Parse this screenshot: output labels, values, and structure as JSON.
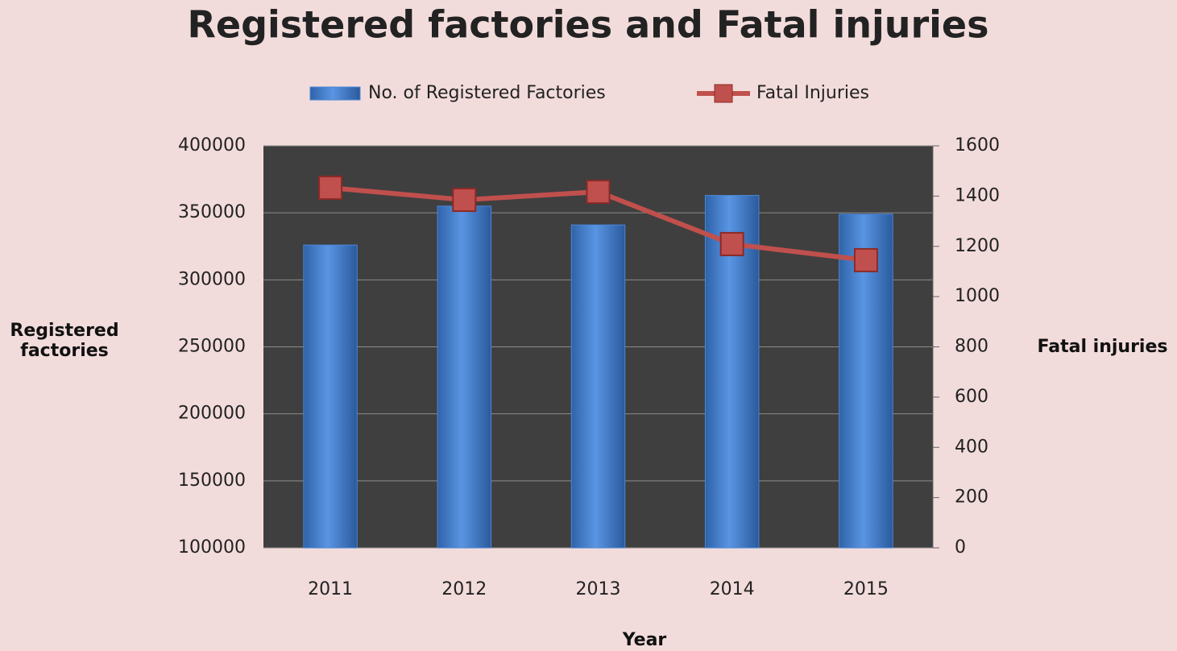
{
  "chart_data": {
    "type": "bar",
    "title": "Registered factories and Fatal injuries",
    "categories": [
      "2011",
      "2012",
      "2013",
      "2014",
      "2015"
    ],
    "series": [
      {
        "name": "No. of Registered Factories",
        "type": "bar",
        "color": "#4a86d8",
        "values": [
          326000,
          355000,
          341000,
          363000,
          349000
        ]
      },
      {
        "name": "Fatal Injuries",
        "type": "line",
        "axis": "y2",
        "color": "#c0504d",
        "values": [
          1433,
          1385,
          1417,
          1209,
          1145
        ]
      }
    ],
    "x_label": "Year",
    "y_label": "Registered factories",
    "y2_label": "Fatal injuries",
    "ylim": [
      100000,
      400000
    ],
    "yticks": [
      100000,
      150000,
      200000,
      250000,
      300000,
      350000,
      400000
    ],
    "y2lim": [
      0,
      1600
    ],
    "y2ticks": [
      0,
      200,
      400,
      600,
      800,
      1000,
      1200,
      1400,
      1600
    ],
    "grid": true,
    "legend": "top"
  }
}
